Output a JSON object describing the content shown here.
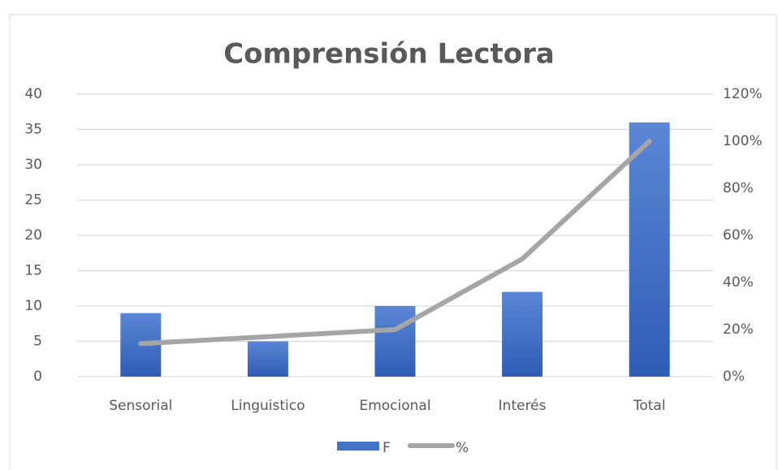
{
  "chart_data": {
    "type": "bar-line",
    "title": "Comprensión Lectora",
    "categories": [
      "Sensorial",
      "Linguistico",
      "Emocional",
      "Interés",
      "Total"
    ],
    "series": [
      {
        "name": "F",
        "type": "bar",
        "color": "#4472c4",
        "values": [
          9,
          5,
          10,
          12,
          36
        ]
      },
      {
        "name": "%",
        "type": "line",
        "color": "#a5a5a5",
        "axis": "y2",
        "values": [
          14,
          17,
          20,
          50,
          100
        ]
      }
    ],
    "ylim": [
      0,
      40
    ],
    "yticks": [
      0,
      5,
      10,
      15,
      20,
      25,
      30,
      35,
      40
    ],
    "y2lim": [
      0,
      120
    ],
    "y2ticks": [
      {
        "value": 0,
        "label": "0%"
      },
      {
        "value": 20,
        "label": "20%"
      },
      {
        "value": 40,
        "label": "40%"
      },
      {
        "value": 60,
        "label": "60%"
      },
      {
        "value": 80,
        "label": "80%"
      },
      {
        "value": 100,
        "label": "100%"
      },
      {
        "value": 120,
        "label": "120%"
      }
    ],
    "grid": true,
    "legend": "bottom"
  }
}
